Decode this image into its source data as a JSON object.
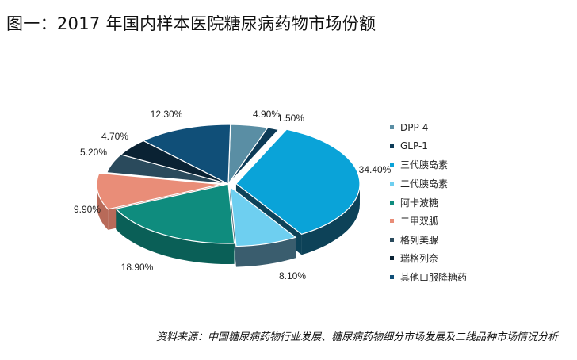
{
  "chart_data": {
    "type": "pie",
    "title": "图一：2017 年国内样本医院糖尿病药物市场份额",
    "style": "3d-exploded",
    "legend_position": "right",
    "slices": [
      {
        "name": "DPP-4",
        "value": 4.9,
        "label": "4.90%",
        "color": "#5a8ea4",
        "side": "#3e6a7c"
      },
      {
        "name": "GLP-1",
        "value": 1.5,
        "label": "1.50%",
        "color": "#0d3b57",
        "side": "#082a3e"
      },
      {
        "name": "三代胰岛素",
        "value": 34.4,
        "label": "34.40%",
        "color": "#0aa3d8",
        "side": "#0d4258"
      },
      {
        "name": "二代胰岛素",
        "value": 8.1,
        "label": "8.10%",
        "color": "#6ecff0",
        "side": "#3a5d6e"
      },
      {
        "name": "阿卡波糖",
        "value": 18.9,
        "label": "18.90%",
        "color": "#0f8c7e",
        "side": "#0a5f57"
      },
      {
        "name": "二甲双胍",
        "value": 9.9,
        "label": "9.90%",
        "color": "#e98d78",
        "side": "#b86a59"
      },
      {
        "name": "格列美脲",
        "value": 5.2,
        "label": "5.20%",
        "color": "#2a4a5c",
        "side": "#1a2f3c"
      },
      {
        "name": "瑞格列奈",
        "value": 4.7,
        "label": "4.70%",
        "color": "#0a2233",
        "side": "#051520"
      },
      {
        "name": "其他口服降糖药",
        "value": 12.3,
        "label": "12.30%",
        "color": "#104f78",
        "side": "#0a3552"
      }
    ]
  },
  "source": "资料来源：中国糖尿病药物行业发展、糖尿病药物细分市场发展及二线品种市场情况分析"
}
